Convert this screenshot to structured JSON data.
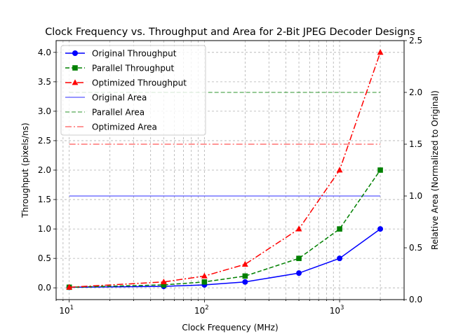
{
  "chart_data": {
    "type": "line",
    "title": "Clock Frequency vs. Throughput and Area for 2-Bit JPEG Decoder Designs",
    "xlabel": "Clock Frequency (MHz)",
    "ylabel_left": "Throughput (pixels/ns)",
    "ylabel_right": "Relative Area (Normalized to Original)",
    "x_scale": "log",
    "x": [
      10,
      50,
      100,
      200,
      500,
      1000,
      2000
    ],
    "xlim": [
      8,
      3000
    ],
    "ylim_left": [
      -0.2,
      4.2
    ],
    "ylim_right": [
      0,
      2.5
    ],
    "x_ticks": [
      {
        "value": 10,
        "base": "10",
        "exp": "1"
      },
      {
        "value": 100,
        "base": "10",
        "exp": "2"
      },
      {
        "value": 1000,
        "base": "10",
        "exp": "3"
      }
    ],
    "y_ticks_left": [
      "0.0",
      "0.5",
      "1.0",
      "1.5",
      "2.0",
      "2.5",
      "3.0",
      "3.5",
      "4.0"
    ],
    "y_ticks_right": [
      "0.0",
      "0.5",
      "1.0",
      "1.5",
      "2.0",
      "2.5"
    ],
    "grid": true,
    "legend_position": "top-left",
    "throughput_series": [
      {
        "name": "Original Throughput",
        "color": "#0000ff",
        "marker": "circle",
        "dash": "solid",
        "values": [
          0.01,
          0.025,
          0.05,
          0.1,
          0.25,
          0.5,
          1.0
        ]
      },
      {
        "name": "Parallel Throughput",
        "color": "#008000",
        "marker": "square",
        "dash": "dashed",
        "values": [
          0.01,
          0.05,
          0.1,
          0.2,
          0.5,
          1.0,
          2.0
        ]
      },
      {
        "name": "Optimized Throughput",
        "color": "#ff0000",
        "marker": "triangle",
        "dash": "dashdot",
        "values": [
          0.01,
          0.1,
          0.2,
          0.4,
          1.0,
          2.0,
          4.0
        ]
      }
    ],
    "area_series": [
      {
        "name": "Original Area",
        "color": "#0000ff",
        "dash": "solid",
        "value": 1.0
      },
      {
        "name": "Parallel Area",
        "color": "#008000",
        "dash": "dashed",
        "value": 2.0
      },
      {
        "name": "Optimized Area",
        "color": "#ff0000",
        "dash": "dashdot",
        "value": 1.5
      }
    ]
  }
}
